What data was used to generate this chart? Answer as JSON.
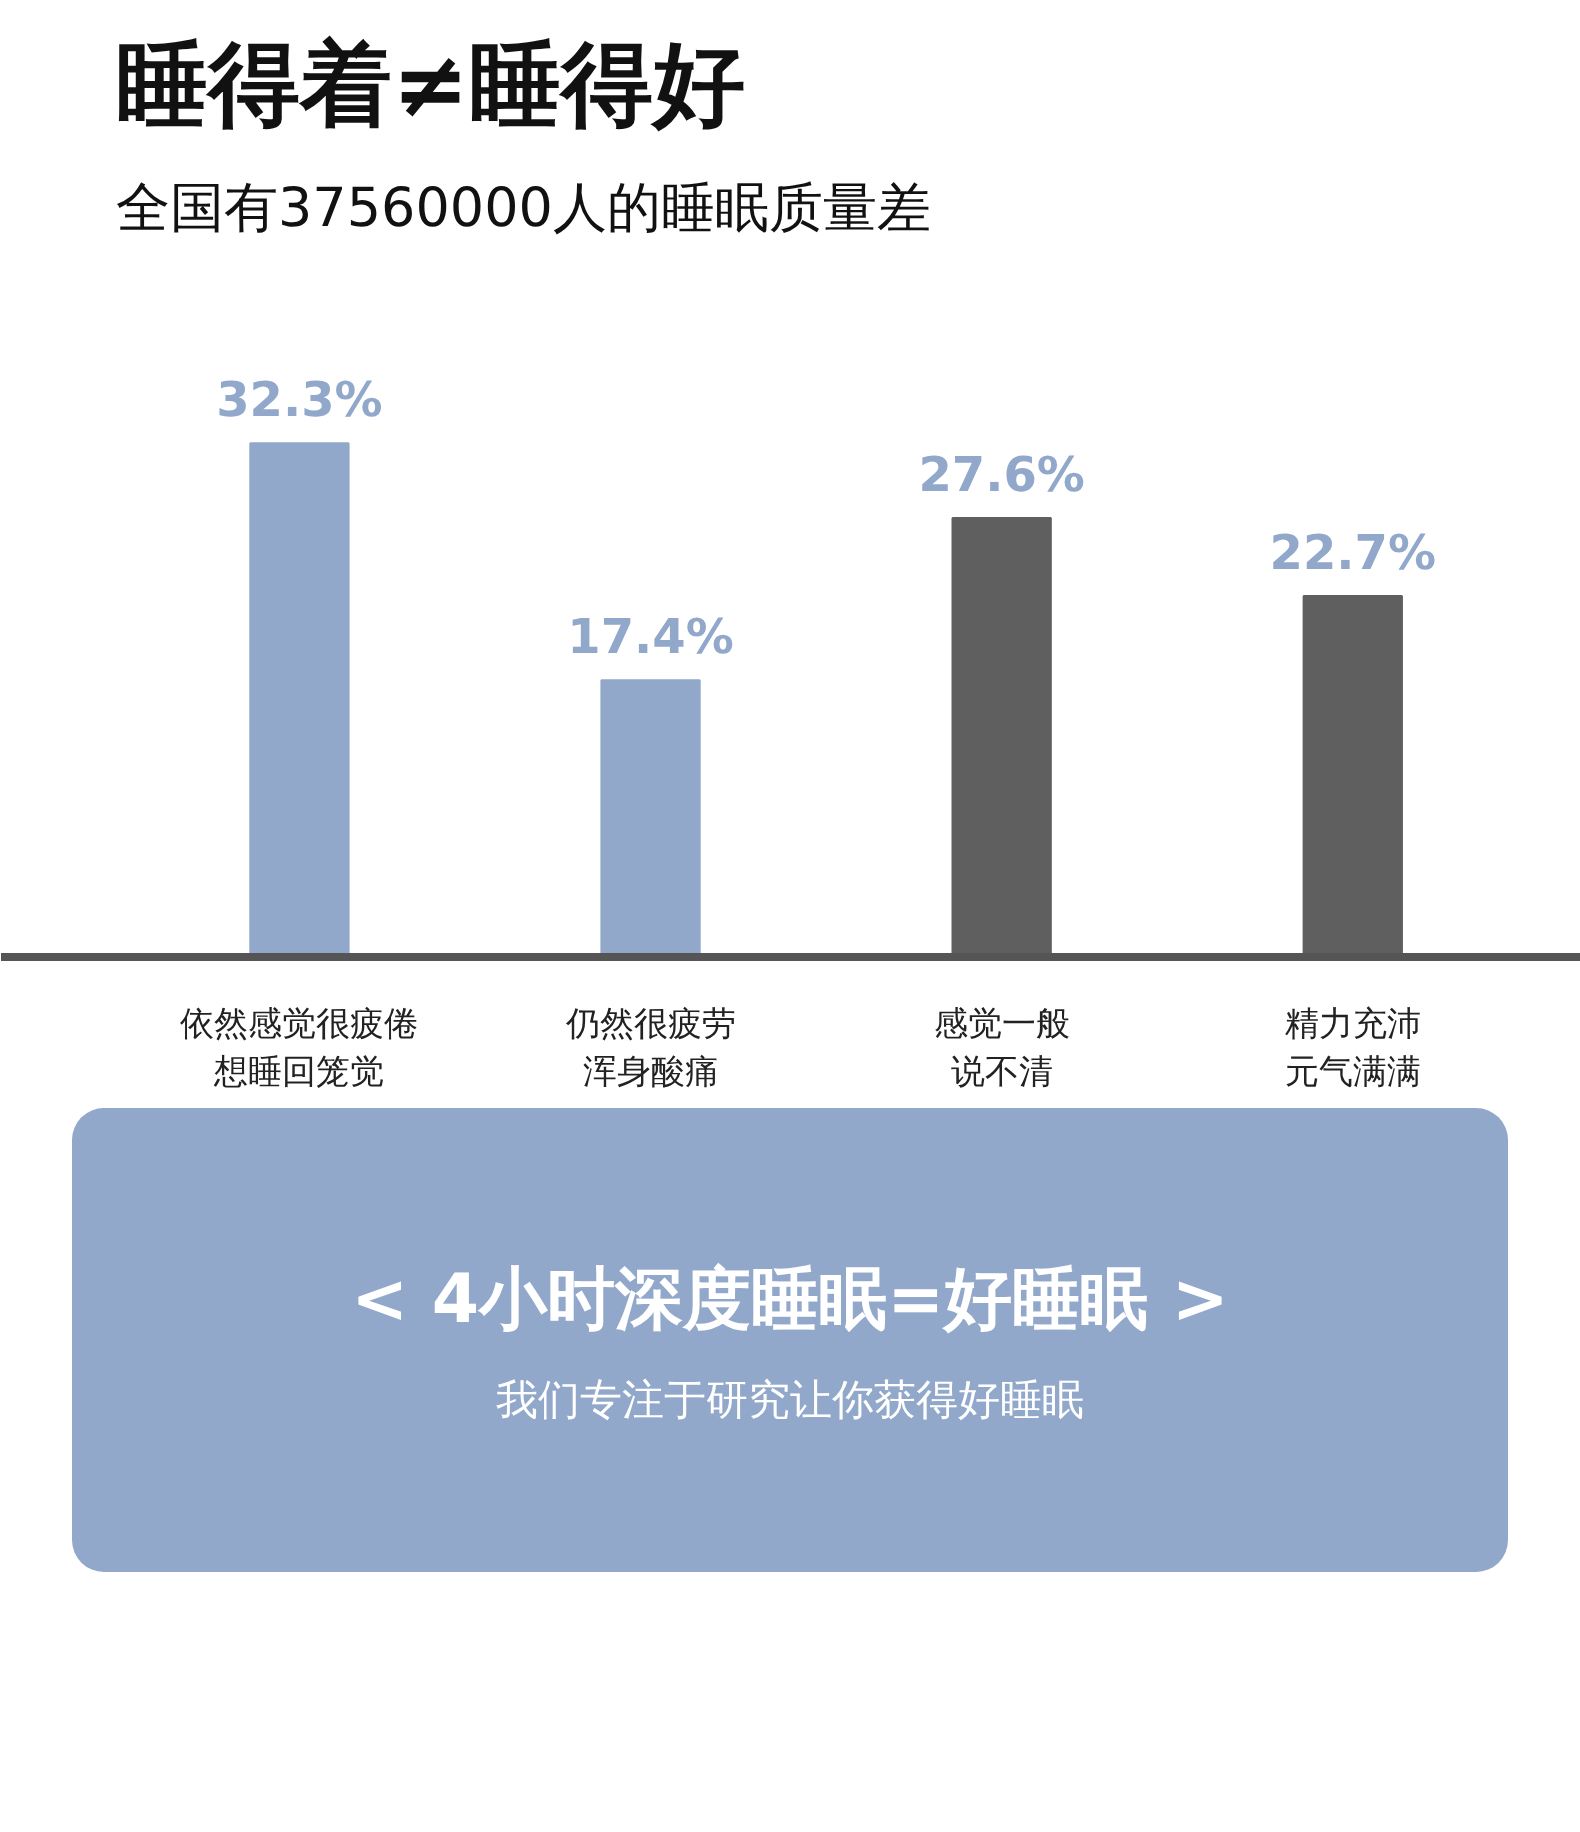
{
  "chart_data": {
    "type": "bar",
    "title": "睡得着≠睡得好",
    "subtitle": "全国有37560000人的睡眠质量差",
    "categories": [
      "依然感觉很疲倦想睡回笼觉",
      "仍然很疲劳浑身酸痛",
      "感觉一般说不清",
      "精力充沛元气满满"
    ],
    "values": [
      32.3,
      17.4,
      27.6,
      22.7
    ],
    "colors": [
      "#91a8cb",
      "#91a8cb",
      "#5f5f5f",
      "#5f5f5f"
    ],
    "value_labels": [
      "32.3%",
      "17.4%",
      "27.6%",
      "22.7%"
    ],
    "annotations": [
      "< 4小时深度睡眠=好睡眠 >",
      "我们专注于研究让你获得好睡眠"
    ]
  }
}
